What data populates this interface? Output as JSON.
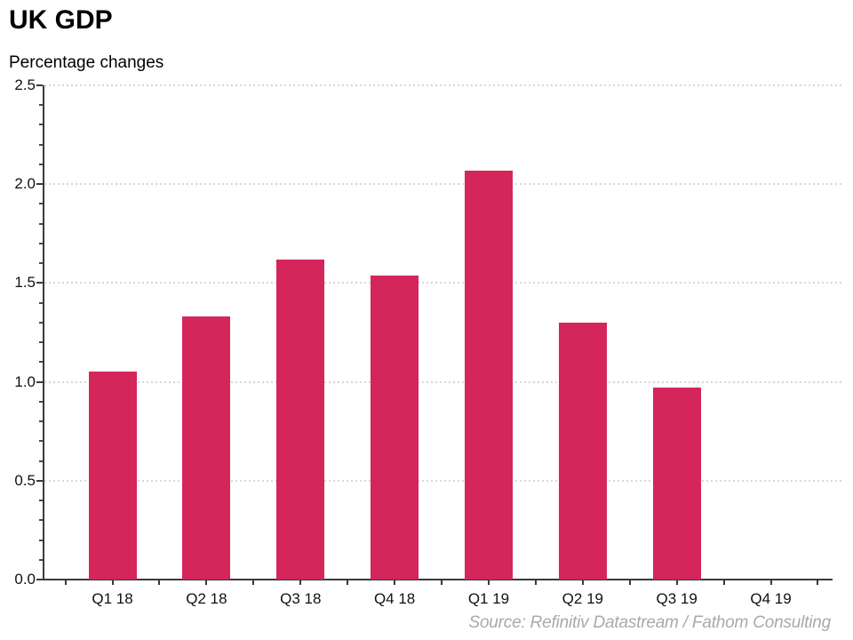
{
  "header": {
    "title": "UK GDP",
    "subtitle": "Percentage changes"
  },
  "footer": {
    "source": "Source: Refinitiv Datastream / Fathom Consulting"
  },
  "chart_data": {
    "type": "bar",
    "title": "UK GDP",
    "subtitle": "Percentage changes",
    "categories": [
      "Q1 18",
      "Q2 18",
      "Q3 18",
      "Q4 18",
      "Q1 19",
      "Q2 19",
      "Q3 19",
      "Q4 19"
    ],
    "values": [
      1.05,
      1.33,
      1.62,
      1.54,
      2.07,
      1.3,
      0.97,
      null
    ],
    "xlabel": "",
    "ylabel": "",
    "ylim": [
      0,
      2.5
    ],
    "yticks": [
      0.0,
      0.5,
      1.0,
      1.5,
      2.0,
      2.5
    ],
    "ytick_labels": [
      "0.0",
      "0.5",
      "1.0",
      "1.5",
      "2.0",
      "2.5"
    ],
    "minor_ytick_step": 0.1,
    "grid": "horizontal-dotted-at-major-ticks",
    "legend": "none",
    "bar_color": "#d4265b",
    "axis_color": "#3a3a3a",
    "grid_color": "#d7d7d7",
    "source": "Source: Refinitiv Datastream / Fathom Consulting"
  }
}
